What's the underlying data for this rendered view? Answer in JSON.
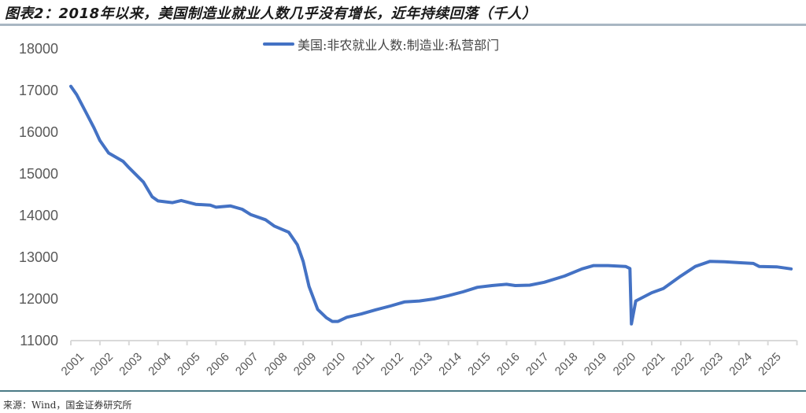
{
  "header": {
    "title": "图表2：2018年以来，美国制造业就业人数几乎没有增长，近年持续回落（千人）"
  },
  "footer": {
    "source": "来源：Wind，国金证券研究所"
  },
  "colors": {
    "series": "#4472c4",
    "title_rule": "#a9b7c3",
    "bottom_rule": "#4a7a86",
    "axis": "#d9d9d9",
    "tick_text": "#595959"
  },
  "chart_data": {
    "type": "line",
    "title": "图表2：2018年以来，美国制造业就业人数几乎没有增长，近年持续回落（千人）",
    "xlabel": "",
    "ylabel": "",
    "ylim": [
      11000,
      18000
    ],
    "yticks": [
      11000,
      12000,
      13000,
      14000,
      15000,
      16000,
      17000,
      18000
    ],
    "xticks": [
      "2001",
      "2002",
      "2003",
      "2004",
      "2005",
      "2006",
      "2007",
      "2008",
      "2009",
      "2010",
      "2011",
      "2012",
      "2013",
      "2014",
      "2015",
      "2016",
      "2017",
      "2018",
      "2019",
      "2020",
      "2021",
      "2022",
      "2023",
      "2024",
      "2025"
    ],
    "grid": false,
    "legend_position": "top",
    "series": [
      {
        "name": "美国:非农就业人数:制造业:私营部门",
        "x": [
          2001.0,
          2001.2,
          2001.5,
          2001.8,
          2002.0,
          2002.3,
          2002.8,
          2003.0,
          2003.5,
          2003.8,
          2004.0,
          2004.5,
          2004.8,
          2005.3,
          2005.8,
          2006.0,
          2006.5,
          2006.9,
          2007.2,
          2007.7,
          2008.0,
          2008.5,
          2008.8,
          2009.0,
          2009.2,
          2009.5,
          2009.8,
          2010.0,
          2010.2,
          2010.5,
          2011.0,
          2011.5,
          2012.0,
          2012.5,
          2013.0,
          2013.5,
          2014.0,
          2014.5,
          2015.0,
          2015.5,
          2016.0,
          2016.3,
          2016.8,
          2017.3,
          2018.0,
          2018.6,
          2019.0,
          2019.5,
          2020.1,
          2020.25,
          2020.3,
          2020.45,
          2021.0,
          2021.4,
          2022.0,
          2022.5,
          2023.0,
          2023.5,
          2024.0,
          2024.5,
          2024.7,
          2025.3,
          2025.8
        ],
        "values": [
          17100,
          16900,
          16500,
          16100,
          15800,
          15500,
          15300,
          15150,
          14800,
          14450,
          14350,
          14310,
          14360,
          14270,
          14250,
          14200,
          14230,
          14150,
          14020,
          13900,
          13750,
          13600,
          13300,
          12900,
          12300,
          11750,
          11550,
          11460,
          11460,
          11560,
          11640,
          11740,
          11830,
          11930,
          11950,
          12000,
          12080,
          12170,
          12280,
          12320,
          12350,
          12320,
          12330,
          12400,
          12550,
          12720,
          12800,
          12800,
          12780,
          12730,
          11400,
          11950,
          12150,
          12250,
          12550,
          12780,
          12900,
          12890,
          12870,
          12850,
          12780,
          12770,
          12720
        ]
      }
    ]
  }
}
